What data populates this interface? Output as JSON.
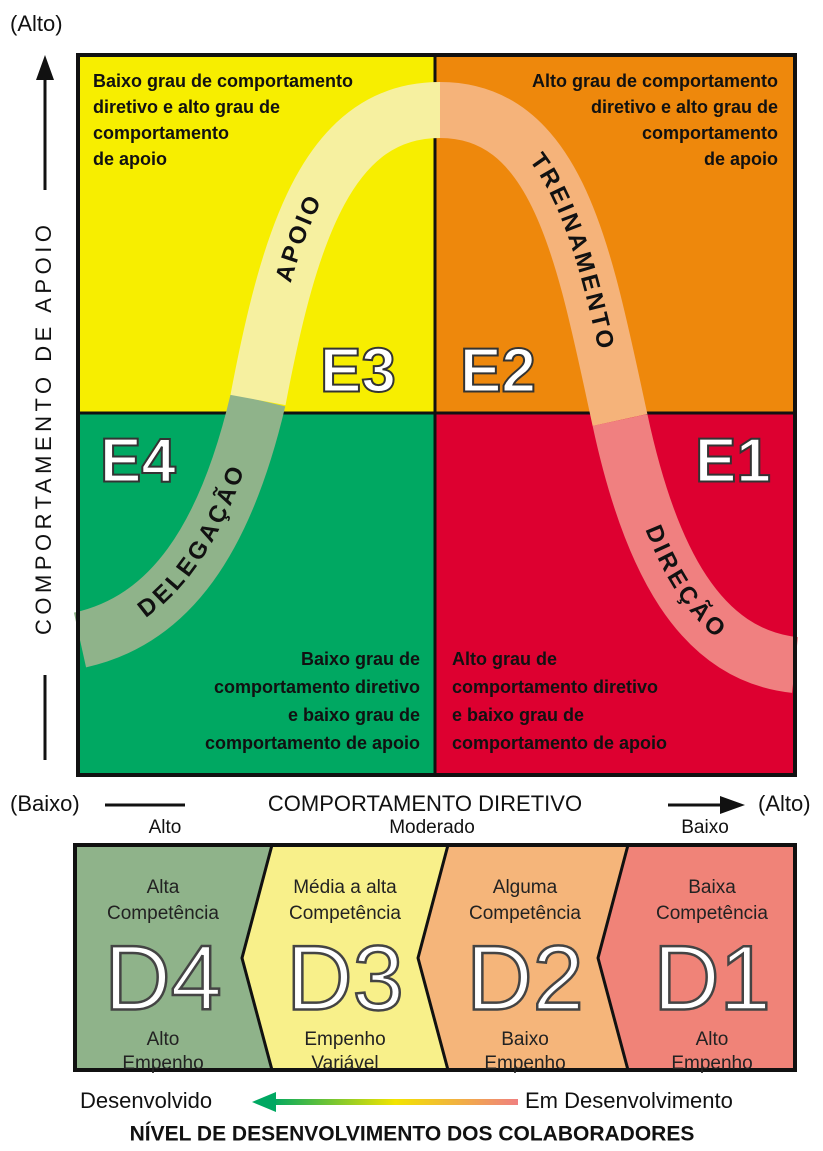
{
  "axes": {
    "y_top": "(Alto)",
    "y_label": "COMPORTAMENTO DE APOIO",
    "x_left": "(Baixo)",
    "x_label": "COMPORTAMENTO DIRETIVO",
    "x_right": "(Alto)"
  },
  "quadrants": [
    {
      "label": "E3",
      "lines": [
        "Baixo grau de comportamento",
        "diretivo e alto grau de",
        "comportamento",
        "de apoio"
      ]
    },
    {
      "label": "E2",
      "lines": [
        "Alto grau de comportamento",
        "diretivo e alto grau de",
        "comportamento",
        "de apoio"
      ]
    },
    {
      "label": "E4",
      "lines": [
        "Baixo grau de",
        "comportamento diretivo",
        "e baixo grau de",
        "comportamento de apoio"
      ]
    },
    {
      "label": "E1",
      "lines": [
        "Alto grau de",
        "comportamento diretivo",
        "e baixo grau de",
        "comportamento de apoio"
      ]
    }
  ],
  "curve": [
    "DELEGAÇÃO",
    "APOIO",
    "TREINAMENTO",
    "DIREÇÃO"
  ],
  "levels": [
    "Alto",
    "Moderado",
    "Baixo"
  ],
  "stages": [
    {
      "code": "D4",
      "top": [
        "Alta",
        "Competência"
      ],
      "bottom": [
        "Alto",
        "Empenho"
      ]
    },
    {
      "code": "D3",
      "top": [
        "Média a alta",
        "Competência"
      ],
      "bottom": [
        "Empenho",
        "Variável"
      ]
    },
    {
      "code": "D2",
      "top": [
        "Alguma",
        "Competência"
      ],
      "bottom": [
        "Baixo",
        "Empenho"
      ]
    },
    {
      "code": "D1",
      "top": [
        "Baixa",
        "Competência"
      ],
      "bottom": [
        "Alto",
        "Empenho"
      ]
    }
  ],
  "footer": {
    "left": "Desenvolvido",
    "right": "Em Desenvolvimento",
    "title": "NÍVEL DE DESENVOLVIMENTO DOS COLABORADORES"
  }
}
